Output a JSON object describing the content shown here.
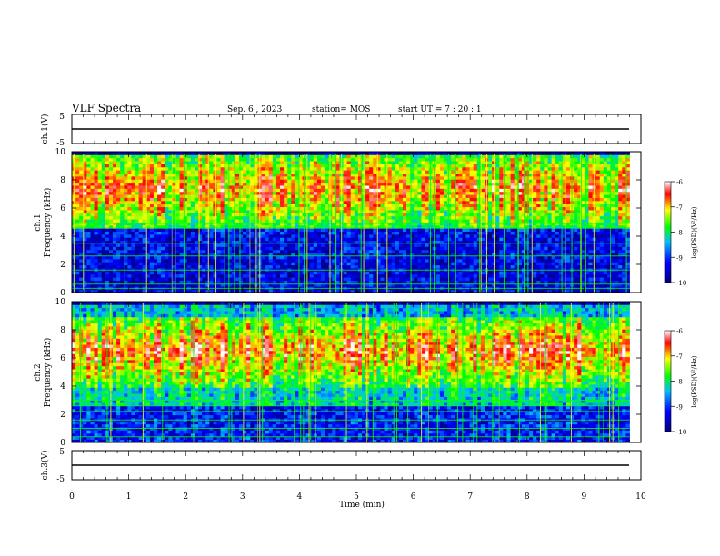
{
  "header": {
    "title": "VLF Spectra",
    "date": "Sep. 6 , 2023",
    "station": "station= MOS",
    "start": "start  UT =   7 : 20 : 1"
  },
  "chart_data": [
    {
      "type": "line",
      "name": "ch1-waveform",
      "ylabel": "ch.1(V)",
      "ylim": [
        -5,
        5
      ],
      "yticks": [
        "5",
        "-5"
      ],
      "x": [
        0,
        9.8
      ],
      "values": [
        0,
        0
      ]
    },
    {
      "type": "heatmap",
      "name": "ch1-spectrogram",
      "ylabel": "ch.1\nFrequency (kHz)",
      "xlim": [
        0,
        10
      ],
      "ylim": [
        0,
        10
      ],
      "yticks": [
        "0",
        "2",
        "4",
        "6",
        "8",
        "10"
      ],
      "data_xmax": 9.8,
      "main_band_khz": [
        4.5,
        9.8
      ],
      "colorbar": {
        "label": "log(PSD)(V²/Hz)",
        "ticks": [
          "-6",
          "-7",
          "-8",
          "-9",
          "-10"
        ],
        "range": [
          -10,
          -6
        ]
      }
    },
    {
      "type": "heatmap",
      "name": "ch2-spectrogram",
      "ylabel": "ch.2\nFrequency (kHz)",
      "xlim": [
        0,
        10
      ],
      "ylim": [
        0,
        10
      ],
      "yticks": [
        "0",
        "2",
        "4",
        "6",
        "8",
        "10"
      ],
      "data_xmax": 9.8,
      "main_band_khz": [
        4.0,
        9.0
      ],
      "colorbar": {
        "label": "log(PSD)(V²/Hz)",
        "ticks": [
          "-6",
          "-7",
          "-8",
          "-9",
          "-10"
        ],
        "range": [
          -10,
          -6
        ]
      }
    },
    {
      "type": "line",
      "name": "ch3-waveform",
      "ylabel": "ch.3(V)",
      "ylim": [
        -5,
        5
      ],
      "yticks": [
        "5",
        "-5"
      ],
      "x": [
        0,
        9.8
      ],
      "values": [
        0,
        0
      ]
    }
  ],
  "xaxis": {
    "label": "Time  (min)",
    "ticks": [
      "0",
      "1",
      "2",
      "3",
      "4",
      "5",
      "6",
      "7",
      "8",
      "9",
      "10"
    ]
  },
  "colors": {
    "background": "#000040",
    "scale": [
      "#00007f",
      "#0000ff",
      "#00bfff",
      "#00ff00",
      "#ffff00",
      "#ff0000",
      "#ffffff"
    ]
  }
}
